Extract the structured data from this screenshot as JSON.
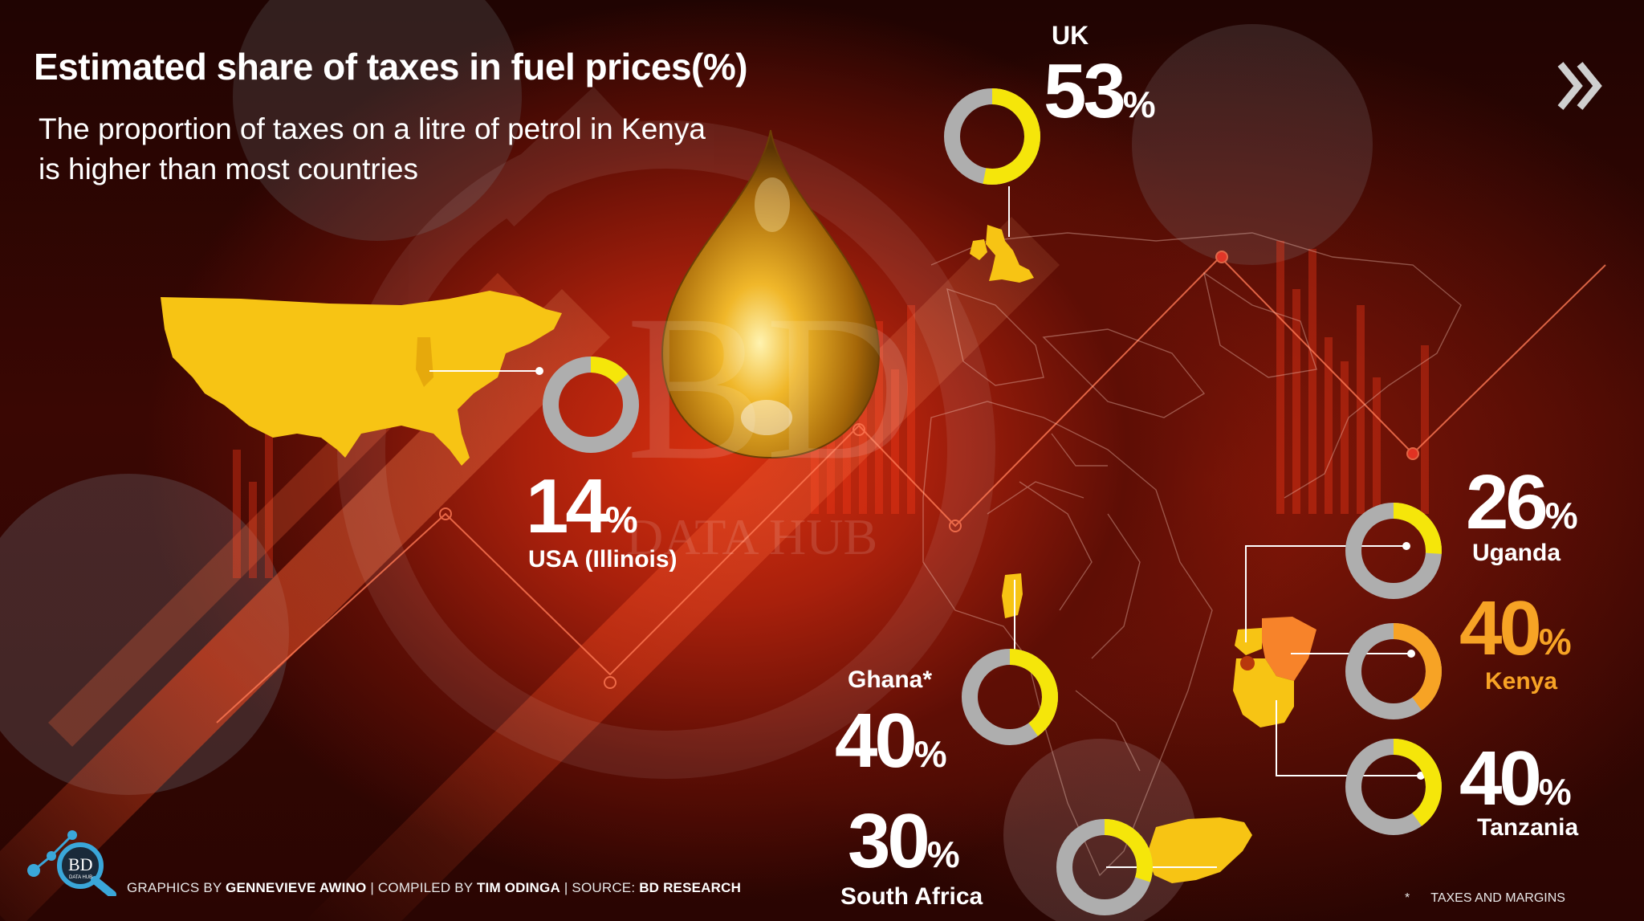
{
  "header": {
    "title": "Estimated share of taxes in fuel prices(%)",
    "subtitle": "The proportion of taxes on a litre of petrol in Kenya is higher than most countries"
  },
  "chart_data": {
    "type": "pie",
    "title": "Estimated share of taxes in fuel prices(%)",
    "unit": "%",
    "items": [
      {
        "label": "UK",
        "value": 53,
        "display": "53",
        "color": "#f5e60a"
      },
      {
        "label": "USA (Illinois)",
        "value": 14,
        "display": "14",
        "color": "#f5e60a"
      },
      {
        "label": "Uganda",
        "value": 26,
        "display": "26",
        "color": "#f5e60a"
      },
      {
        "label": "Kenya",
        "value": 40,
        "display": "40",
        "color": "#f7a325"
      },
      {
        "label": "Tanzania",
        "value": 40,
        "display": "40",
        "color": "#f5e60a"
      },
      {
        "label": "Ghana*",
        "value": 40,
        "display": "40",
        "color": "#f5e60a"
      },
      {
        "label": "South Africa",
        "value": 30,
        "display": "30",
        "color": "#f5e60a"
      }
    ]
  },
  "colors": {
    "ring_track": "#aeaeae",
    "ring_highlight": "#f5e60a",
    "kenya_accent": "#f7a325",
    "map_fill": "#f7c414"
  },
  "footer": {
    "credit_prefix_1": "GRAPHICS BY ",
    "credit_name_1": "GENNEVIEVE AWINO",
    "credit_prefix_2": " | COMPILED BY ",
    "credit_name_2": "TIM ODINGA",
    "credit_prefix_3": " | SOURCE: ",
    "credit_name_3": "BD RESEARCH",
    "footnote_mark": "*",
    "footnote_text": "TAXES AND MARGINS"
  },
  "branding": {
    "logo_text": "BD",
    "logo_subtext": "DATA HUB",
    "watermark_text": "BD",
    "watermark_subtext": "DATA HUB"
  },
  "icons": {
    "next": "double-chevron-right-icon",
    "logo": "bd-data-hub-logo",
    "droplet": "oil-droplet"
  }
}
